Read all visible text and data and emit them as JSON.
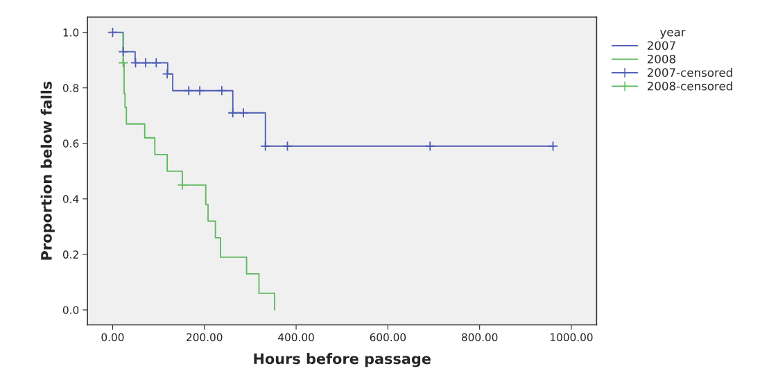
{
  "chart_data": {
    "type": "step",
    "xlabel": "Hours before passage",
    "ylabel": "Proportion below falls",
    "legend_title": "year",
    "xlim": [
      -55,
      1055
    ],
    "ylim": [
      -0.054,
      1.055
    ],
    "xticks": [
      {
        "value": 0,
        "label": "0.00"
      },
      {
        "value": 200,
        "label": "200.00"
      },
      {
        "value": 400,
        "label": "400.00"
      },
      {
        "value": 600,
        "label": "600.00"
      },
      {
        "value": 800,
        "label": "800.00"
      },
      {
        "value": 1000,
        "label": "1000.00"
      }
    ],
    "yticks": [
      {
        "value": 0,
        "label": "0.0"
      },
      {
        "value": 0.2,
        "label": "0.2"
      },
      {
        "value": 0.4,
        "label": "0.4"
      },
      {
        "value": 0.6,
        "label": "0.6"
      },
      {
        "value": 0.8,
        "label": "0.8"
      },
      {
        "value": 1,
        "label": "1.0"
      }
    ],
    "grid": false,
    "legend": "right",
    "series": [
      {
        "name": "2007",
        "color": "#4c5bb3",
        "x": [
          0,
          23,
          49,
          120,
          131,
          262,
          333,
          960
        ],
        "values": [
          1.0,
          0.93,
          0.89,
          0.85,
          0.79,
          0.71,
          0.59,
          0.59
        ]
      },
      {
        "name": "2008",
        "color": "#5cb85c",
        "x": [
          23,
          23,
          25,
          27,
          30,
          70,
          92,
          119,
          152,
          203,
          208,
          224,
          235,
          292,
          319,
          353
        ],
        "values": [
          1.0,
          0.89,
          0.78,
          0.73,
          0.67,
          0.62,
          0.56,
          0.5,
          0.45,
          0.38,
          0.32,
          0.26,
          0.19,
          0.13,
          0.06,
          0.0
        ]
      },
      {
        "name": "2007-censored",
        "type": "scatter",
        "marker": "cross",
        "color": "#4c5bb3",
        "x": [
          0,
          23,
          50,
          72,
          95,
          119,
          166,
          190,
          238,
          262,
          285,
          333,
          381,
          692,
          960
        ],
        "values": [
          1.0,
          0.93,
          0.89,
          0.89,
          0.89,
          0.85,
          0.79,
          0.79,
          0.79,
          0.71,
          0.71,
          0.59,
          0.59,
          0.59,
          0.59
        ]
      },
      {
        "name": "2008-censored",
        "type": "scatter",
        "marker": "cross",
        "color": "#5cb85c",
        "x": [
          23,
          152
        ],
        "values": [
          0.89,
          0.45
        ]
      }
    ]
  }
}
